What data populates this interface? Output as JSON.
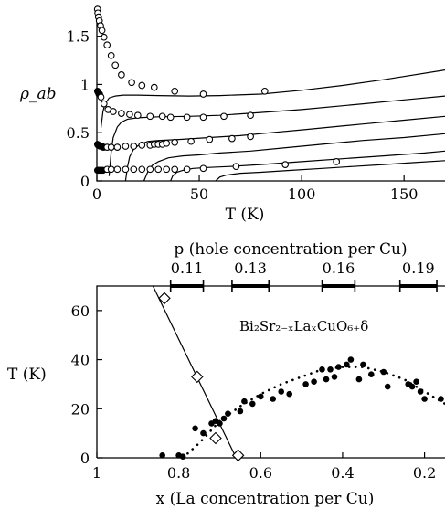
{
  "chart_data": [
    {
      "type": "line",
      "ylabel": "ρ_ab",
      "xlabel": "T (K)",
      "xlim": [
        0,
        170
      ],
      "ylim": [
        0,
        1.8
      ],
      "xticks": [
        0,
        50,
        100,
        150
      ],
      "yticks": [
        0,
        0.5,
        1,
        1.5
      ],
      "xtick_labels": [
        "0",
        "50",
        "100",
        "150"
      ],
      "ytick_labels": [
        "0",
        "0.5",
        "1",
        "1.5"
      ],
      "grid": false,
      "series": [
        {
          "marker": "open-circle",
          "style": "markers",
          "x": [
            0.3,
            0.5,
            0.8,
            1.2,
            1.8,
            2.5,
            3.5,
            5,
            7,
            9,
            12,
            17,
            22,
            28,
            38,
            52,
            82
          ],
          "y": [
            1.78,
            1.74,
            1.7,
            1.66,
            1.61,
            1.56,
            1.49,
            1.41,
            1.3,
            1.2,
            1.1,
            1.02,
            0.99,
            0.97,
            0.93,
            0.9,
            0.93
          ]
        },
        {
          "marker": "filled-circle",
          "style": "markers",
          "x": [
            0.3,
            0.6,
            1,
            1.4
          ],
          "y": [
            0.93,
            0.92,
            0.9,
            0.9
          ]
        },
        {
          "marker": "open-circle",
          "style": "markers",
          "x": [
            2,
            3.5,
            5.5,
            8,
            12,
            16,
            20,
            26,
            32,
            36,
            44,
            52,
            62,
            75
          ],
          "y": [
            0.87,
            0.8,
            0.74,
            0.72,
            0.7,
            0.69,
            0.68,
            0.67,
            0.67,
            0.66,
            0.66,
            0.66,
            0.67,
            0.68
          ]
        },
        {
          "marker": "filled-circle",
          "style": "markers",
          "x": [
            0.3,
            0.6,
            1,
            1.5,
            2,
            2.5,
            3,
            3.5
          ],
          "y": [
            0.38,
            0.37,
            0.37,
            0.36,
            0.36,
            0.36,
            0.35,
            0.35
          ]
        },
        {
          "marker": "open-circle",
          "style": "markers",
          "x": [
            5,
            7,
            10,
            14,
            18,
            22,
            26,
            28,
            30,
            32,
            34,
            38,
            46,
            55,
            66,
            75
          ],
          "y": [
            0.35,
            0.35,
            0.35,
            0.36,
            0.36,
            0.37,
            0.37,
            0.38,
            0.38,
            0.38,
            0.39,
            0.4,
            0.41,
            0.43,
            0.44,
            0.46
          ]
        },
        {
          "marker": "filled-circle",
          "style": "markers",
          "x": [
            0.3,
            0.6,
            1,
            1.5,
            2,
            2.5,
            3
          ],
          "y": [
            0.11,
            0.11,
            0.11,
            0.11,
            0.11,
            0.11,
            0.11
          ]
        },
        {
          "marker": "open-circle",
          "style": "markers",
          "x": [
            5,
            7,
            10,
            14,
            18,
            22,
            26,
            30,
            34,
            38,
            44,
            52,
            68,
            92,
            117
          ],
          "y": [
            0.12,
            0.12,
            0.12,
            0.12,
            0.12,
            0.12,
            0.12,
            0.12,
            0.12,
            0.12,
            0.12,
            0.13,
            0.15,
            0.17,
            0.2
          ]
        },
        {
          "style": "line",
          "x": [
            2,
            3,
            4,
            6,
            9,
            13,
            20,
            30,
            45,
            60,
            80,
            100,
            120,
            140,
            170
          ],
          "y": [
            0.55,
            0.72,
            0.8,
            0.86,
            0.88,
            0.89,
            0.89,
            0.885,
            0.88,
            0.885,
            0.9,
            0.94,
            0.99,
            1.05,
            1.15
          ]
        },
        {
          "style": "line",
          "x": [
            6,
            7,
            8,
            10,
            12,
            15,
            20,
            30,
            45,
            60,
            80,
            100,
            130,
            150,
            170
          ],
          "y": [
            0.05,
            0.3,
            0.45,
            0.56,
            0.61,
            0.64,
            0.655,
            0.665,
            0.67,
            0.68,
            0.71,
            0.74,
            0.8,
            0.84,
            0.88
          ]
        },
        {
          "style": "line",
          "x": [
            14,
            15,
            16,
            18,
            21,
            25,
            30,
            40,
            55,
            70,
            85,
            100,
            130,
            150,
            170
          ],
          "y": [
            0,
            0.15,
            0.25,
            0.33,
            0.38,
            0.41,
            0.42,
            0.43,
            0.45,
            0.47,
            0.5,
            0.53,
            0.59,
            0.63,
            0.67
          ]
        },
        {
          "style": "line",
          "x": [
            23,
            25,
            27,
            30,
            35,
            42,
            50,
            60,
            75,
            90,
            110,
            130,
            150,
            170
          ],
          "y": [
            0,
            0.1,
            0.16,
            0.2,
            0.24,
            0.26,
            0.27,
            0.29,
            0.31,
            0.34,
            0.38,
            0.42,
            0.45,
            0.49
          ]
        },
        {
          "style": "line",
          "x": [
            36,
            37,
            39,
            42,
            47,
            55,
            65,
            80,
            100,
            120,
            140,
            160,
            170
          ],
          "y": [
            0,
            0.05,
            0.09,
            0.11,
            0.13,
            0.14,
            0.15,
            0.17,
            0.2,
            0.23,
            0.26,
            0.29,
            0.31
          ]
        },
        {
          "style": "line",
          "x": [
            58,
            60,
            63,
            70,
            80,
            95,
            110,
            125,
            140,
            155,
            170
          ],
          "y": [
            0,
            0.04,
            0.06,
            0.08,
            0.09,
            0.11,
            0.13,
            0.15,
            0.17,
            0.19,
            0.21
          ]
        }
      ]
    },
    {
      "type": "scatter",
      "xlabel": "x (La concentration per Cu)",
      "ylabel": "T (K)",
      "top_axis_label": "p (hole concentration per Cu)",
      "annotation": "Bi₂Sr₂₋ₓLaₓCuO₆₊δ",
      "xlim": [
        1.0,
        0.15
      ],
      "ylim": [
        0,
        70
      ],
      "xticks": [
        1,
        0.8,
        0.6,
        0.4,
        0.2
      ],
      "yticks": [
        0,
        20,
        40,
        60
      ],
      "xtick_labels": [
        "1",
        "0.8",
        "0.6",
        "0.4",
        "0.2"
      ],
      "ytick_labels": [
        "0",
        "20",
        "40",
        "60"
      ],
      "top_tick_labels": [
        "0.11",
        "0.13",
        "0.16",
        "0.19"
      ],
      "top_tick_x": [
        0.78,
        0.625,
        0.41,
        0.215
      ],
      "top_range_bars": [
        [
          0.82,
          0.74
        ],
        [
          0.67,
          0.58
        ],
        [
          0.45,
          0.37
        ],
        [
          0.26,
          0.17
        ]
      ],
      "grid": false,
      "series": [
        {
          "marker": "filled-circle",
          "x": [
            0.84,
            0.8,
            0.79,
            0.76,
            0.74,
            0.72,
            0.71,
            0.7,
            0.69,
            0.68,
            0.65,
            0.64,
            0.62,
            0.6,
            0.57,
            0.55,
            0.53,
            0.49,
            0.47,
            0.45,
            0.44,
            0.43,
            0.42,
            0.41,
            0.39,
            0.38,
            0.36,
            0.35,
            0.33,
            0.3,
            0.29,
            0.24,
            0.23,
            0.22,
            0.21,
            0.2,
            0.16
          ],
          "y": [
            1,
            1,
            0.5,
            12,
            10,
            14,
            15,
            14,
            16,
            18,
            19,
            23,
            22,
            25,
            24,
            27,
            26,
            30,
            31,
            36,
            32,
            36,
            33,
            37,
            38,
            40,
            32,
            38,
            34,
            35,
            29,
            30,
            29,
            31,
            27,
            24,
            24
          ]
        },
        {
          "marker": "open-diamond",
          "x": [
            0.835,
            0.755,
            0.71,
            0.655
          ],
          "y": [
            65,
            33,
            8,
            1
          ]
        },
        {
          "style": "solid-line",
          "x": [
            0.863,
            0.66
          ],
          "y": [
            70,
            0
          ]
        },
        {
          "style": "dotted-curve",
          "x": [
            0.79,
            0.75,
            0.7,
            0.65,
            0.6,
            0.55,
            0.5,
            0.45,
            0.4,
            0.35,
            0.3,
            0.25,
            0.2,
            0.15
          ],
          "y": [
            0,
            6,
            15,
            21,
            26,
            30,
            33,
            36,
            37,
            37,
            35,
            32,
            27,
            22
          ]
        }
      ]
    }
  ]
}
